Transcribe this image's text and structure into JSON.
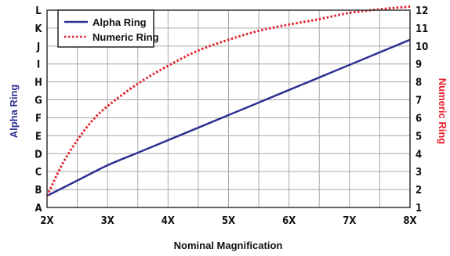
{
  "chart_data": {
    "type": "line",
    "x": [
      "2X",
      "3X",
      "4X",
      "5X",
      "6X",
      "7X",
      "8X"
    ],
    "x_values": [
      2,
      3,
      4,
      5,
      6,
      7,
      8
    ],
    "xlim": [
      2,
      8
    ],
    "xlabel": "Nominal Magnification",
    "y_left": {
      "label": "Alpha Ring",
      "ticks": [
        "A",
        "B",
        "C",
        "D",
        "E",
        "F",
        "G",
        "H",
        "I",
        "J",
        "K",
        "L"
      ],
      "range": [
        1,
        12
      ]
    },
    "y_right": {
      "label": "Numeric Ring",
      "ticks": [
        "1",
        "2",
        "3",
        "4",
        "5",
        "6",
        "7",
        "8",
        "9",
        "10",
        "11",
        "12"
      ],
      "range": [
        1,
        12
      ]
    },
    "grid": true,
    "legend_position": "top-left",
    "series": [
      {
        "name": "Alpha Ring",
        "axis": "left",
        "color": "#2e3192",
        "style": "solid",
        "x": [
          2,
          2.5,
          3,
          3.5,
          4,
          4.5,
          5,
          5.5,
          6,
          6.5,
          7,
          7.5,
          8
        ],
        "y": [
          1.65,
          2.5,
          3.35,
          4.05,
          4.75,
          5.45,
          6.15,
          6.85,
          7.55,
          8.25,
          8.95,
          9.65,
          10.35
        ]
      },
      {
        "name": "Numeric Ring",
        "axis": "right",
        "color": "#e8202e",
        "style": "dotted",
        "x": [
          2,
          2.25,
          2.5,
          2.75,
          3,
          3.5,
          4,
          4.5,
          5,
          5.5,
          6,
          6.5,
          7,
          7.5,
          8
        ],
        "y": [
          1.65,
          3.4,
          4.75,
          5.85,
          6.65,
          7.9,
          8.9,
          9.75,
          10.35,
          10.85,
          11.2,
          11.5,
          11.85,
          12.05,
          12.2
        ]
      }
    ]
  }
}
